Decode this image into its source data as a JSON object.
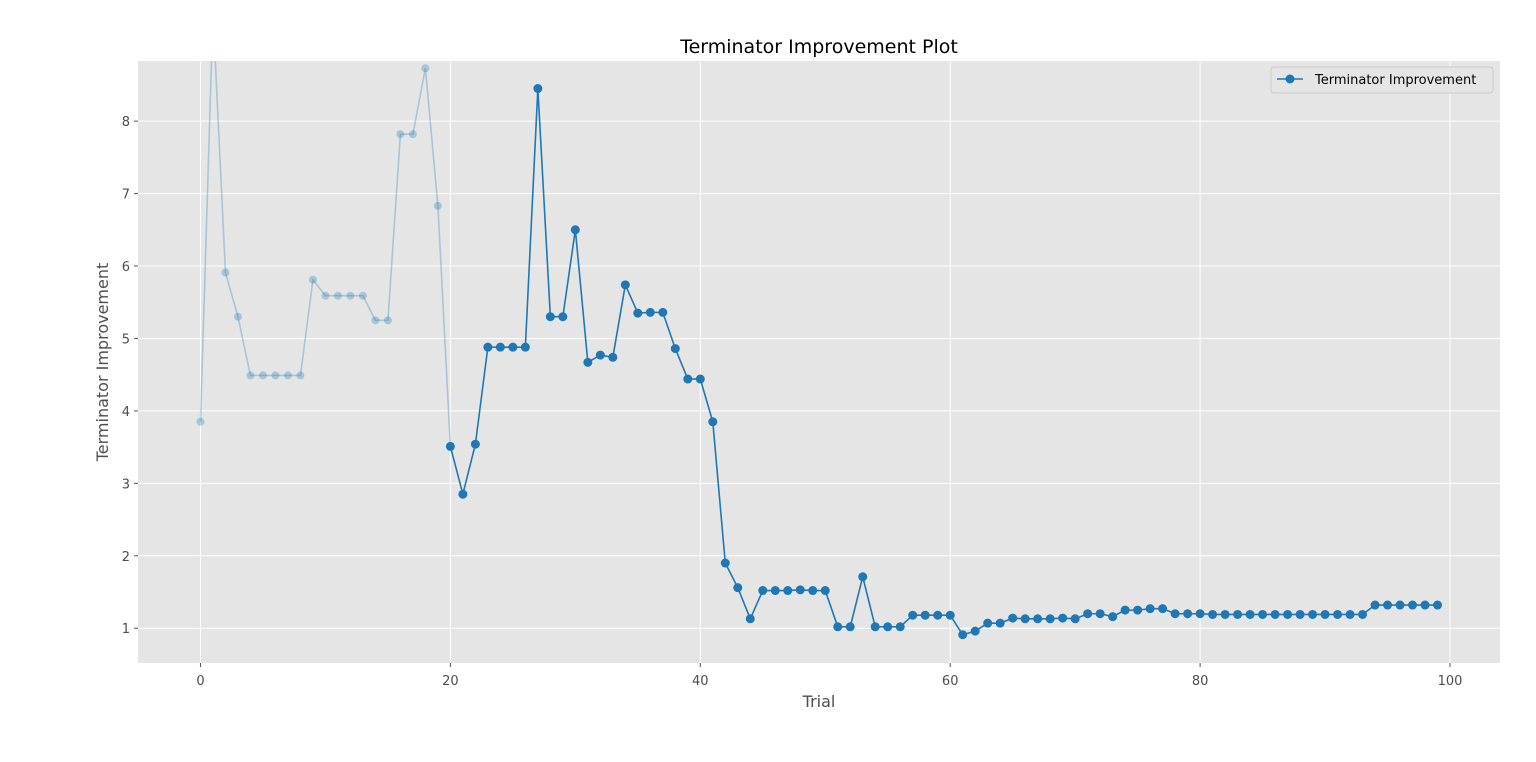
{
  "chart_data": {
    "type": "line",
    "title": "Terminator Improvement Plot",
    "xlabel": "Trial",
    "ylabel": "Terminator Improvement",
    "xlim": [
      -5,
      104
    ],
    "ylim": [
      0.52,
      8.83
    ],
    "xticks": [
      0,
      20,
      40,
      60,
      80,
      100
    ],
    "yticks": [
      1,
      2,
      3,
      4,
      5,
      6,
      7,
      8
    ],
    "grid": true,
    "legend_position": "top-right",
    "colors": {
      "line": "#1f77b4",
      "background": "#e5e5e5",
      "grid": "#ffffff"
    },
    "faded_until_trial": 20,
    "series": [
      {
        "name": "Terminator Improvement",
        "x": [
          0,
          1,
          2,
          3,
          4,
          5,
          6,
          7,
          8,
          9,
          10,
          11,
          12,
          13,
          14,
          15,
          16,
          17,
          18,
          19,
          20,
          21,
          22,
          23,
          24,
          25,
          26,
          27,
          28,
          29,
          30,
          31,
          32,
          33,
          34,
          35,
          36,
          37,
          38,
          39,
          40,
          41,
          42,
          43,
          44,
          45,
          46,
          47,
          48,
          49,
          50,
          51,
          52,
          53,
          54,
          55,
          56,
          57,
          58,
          59,
          60,
          61,
          62,
          63,
          64,
          65,
          66,
          67,
          68,
          69,
          70,
          71,
          72,
          73,
          74,
          75,
          76,
          77,
          78,
          79,
          80,
          81,
          82,
          83,
          84,
          85,
          86,
          87,
          88,
          89,
          90,
          91,
          92,
          93,
          94,
          95,
          96,
          97,
          98,
          99
        ],
        "y": [
          3.85,
          9.5,
          5.91,
          5.3,
          4.49,
          4.49,
          4.49,
          4.49,
          4.49,
          5.81,
          5.59,
          5.59,
          5.59,
          5.59,
          5.25,
          5.25,
          7.82,
          7.82,
          8.73,
          6.83,
          3.51,
          2.85,
          3.54,
          4.88,
          4.88,
          4.88,
          4.88,
          8.45,
          5.3,
          5.3,
          6.5,
          4.67,
          4.77,
          4.74,
          5.74,
          5.35,
          5.36,
          5.36,
          4.86,
          4.44,
          4.44,
          3.85,
          1.9,
          1.56,
          1.13,
          1.52,
          1.52,
          1.52,
          1.53,
          1.52,
          1.52,
          1.02,
          1.02,
          1.71,
          1.02,
          1.02,
          1.02,
          1.18,
          1.18,
          1.18,
          1.18,
          0.91,
          0.96,
          1.07,
          1.07,
          1.14,
          1.13,
          1.13,
          1.13,
          1.14,
          1.13,
          1.2,
          1.2,
          1.16,
          1.25,
          1.25,
          1.27,
          1.27,
          1.2,
          1.2,
          1.2,
          1.19,
          1.19,
          1.19,
          1.19,
          1.19,
          1.19,
          1.19,
          1.19,
          1.19,
          1.19,
          1.19,
          1.19,
          1.19,
          1.32,
          1.32,
          1.32,
          1.32,
          1.32,
          1.32
        ]
      }
    ]
  }
}
